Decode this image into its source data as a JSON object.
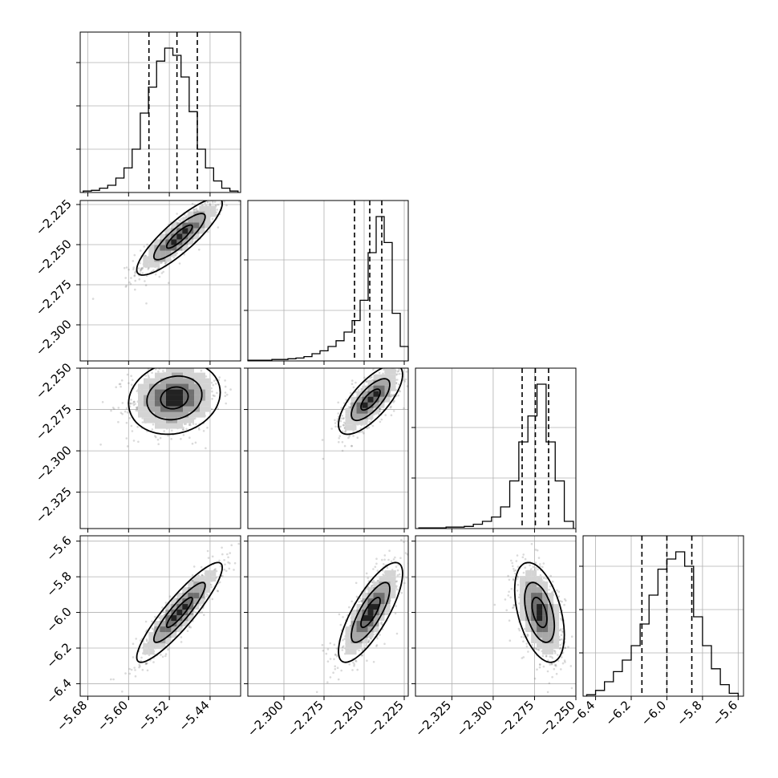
{
  "chart_data": {
    "type": "corner",
    "grid": true,
    "parameters": 4,
    "histograms": [
      {
        "param": 0,
        "bin_edges": [
          -5.689,
          -5.673,
          -5.657,
          -5.641,
          -5.625,
          -5.609,
          -5.593,
          -5.577,
          -5.561,
          -5.545,
          -5.529,
          -5.513,
          -5.497,
          -5.481,
          -5.465,
          -5.449,
          -5.433,
          -5.417,
          -5.401,
          -5.385
        ],
        "counts": [
          0.01,
          0.015,
          0.03,
          0.05,
          0.1,
          0.17,
          0.3,
          0.55,
          0.73,
          0.91,
          1.0,
          0.95,
          0.8,
          0.56,
          0.3,
          0.17,
          0.08,
          0.03,
          0.01
        ],
        "quantiles": [
          -5.56,
          -5.505,
          -5.465
        ],
        "xlim": [
          -5.695,
          -5.38
        ],
        "xticks": [
          -5.68,
          -5.6,
          -5.52,
          -5.44
        ],
        "xticklabels": [
          "−5.68",
          "−5.60",
          "−5.52",
          "−5.44"
        ],
        "ygrid": [
          0.3,
          0.6,
          0.9
        ]
      },
      {
        "param": 1,
        "bin_edges": [
          -2.3225,
          -2.3175,
          -2.3125,
          -2.3075,
          -2.3025,
          -2.2975,
          -2.2925,
          -2.2875,
          -2.2825,
          -2.2775,
          -2.2725,
          -2.2675,
          -2.2625,
          -2.2575,
          -2.2525,
          -2.2475,
          -2.2425,
          -2.2375,
          -2.2325,
          -2.2275,
          -2.2225
        ],
        "counts": [
          0.005,
          0.005,
          0.005,
          0.01,
          0.01,
          0.015,
          0.02,
          0.03,
          0.05,
          0.07,
          0.1,
          0.14,
          0.2,
          0.28,
          0.42,
          0.75,
          1.0,
          0.82,
          0.33,
          0.1
        ],
        "quantiles": [
          -2.256,
          -2.2465,
          -2.239
        ],
        "xlim": [
          -2.3225,
          -2.2225
        ],
        "xticks": [
          -2.3,
          -2.275,
          -2.25,
          -2.225
        ],
        "xticklabels": [
          "−2.300",
          "−2.275",
          "−2.250",
          "−2.225"
        ],
        "ygrid": [
          0.35,
          0.7
        ]
      },
      {
        "param": 2,
        "bin_edges": [
          -2.345,
          -2.3395,
          -2.334,
          -2.3285,
          -2.323,
          -2.3175,
          -2.312,
          -2.3065,
          -2.301,
          -2.2955,
          -2.29,
          -2.2845,
          -2.279,
          -2.2735,
          -2.268,
          -2.2625,
          -2.257,
          -2.2515
        ],
        "counts": [
          0.005,
          0.005,
          0.005,
          0.01,
          0.01,
          0.015,
          0.03,
          0.05,
          0.08,
          0.15,
          0.33,
          0.6,
          0.78,
          1.0,
          0.6,
          0.33,
          0.05
        ],
        "quantiles": [
          -2.2825,
          -2.2745,
          -2.2665
        ],
        "xlim": [
          -2.347,
          -2.25
        ],
        "xticks": [
          -2.325,
          -2.3,
          -2.275,
          -2.25
        ],
        "xticklabels": [
          "−2.325",
          "−2.300",
          "−2.275",
          "−2.250"
        ],
        "ygrid": [
          0.35,
          0.7
        ]
      },
      {
        "param": 3,
        "bin_edges": [
          -6.45,
          -6.4,
          -6.35,
          -6.3,
          -6.25,
          -6.2,
          -6.15,
          -6.1,
          -6.05,
          -6.0,
          -5.95,
          -5.9,
          -5.85,
          -5.8,
          -5.75,
          -5.7,
          -5.65,
          -5.6
        ],
        "counts": [
          0.01,
          0.04,
          0.1,
          0.17,
          0.25,
          0.35,
          0.5,
          0.7,
          0.88,
          0.95,
          1.0,
          0.9,
          0.55,
          0.35,
          0.19,
          0.08,
          0.02
        ],
        "quantiles": [
          -6.14,
          -6.0,
          -5.86
        ],
        "xlim": [
          -6.47,
          -5.57
        ],
        "xticks": [
          -6.4,
          -6.2,
          -6.0,
          -5.8,
          -5.6
        ],
        "xticklabels": [
          "−6.4",
          "−6.2",
          "−6.0",
          "−5.8",
          "−5.6"
        ],
        "ygrid": [
          0.3,
          0.6,
          0.9
        ]
      }
    ],
    "row_axes": [
      {
        "param": 1,
        "ylim": [
          -2.3225,
          -2.2225
        ],
        "yticks": [
          -2.225,
          -2.25,
          -2.275,
          -2.3
        ],
        "yticklabels": [
          "−2.225",
          "−2.250",
          "−2.275",
          "−2.300"
        ]
      },
      {
        "param": 2,
        "ylim": [
          -2.347,
          -2.25
        ],
        "yticks": [
          -2.25,
          -2.275,
          -2.3,
          -2.325
        ],
        "yticklabels": [
          "−2.250",
          "−2.275",
          "−2.300",
          "−2.325"
        ]
      },
      {
        "param": 3,
        "ylim": [
          -6.47,
          -5.57
        ],
        "yticks": [
          -5.6,
          -5.8,
          -6.0,
          -6.2,
          -6.4
        ],
        "yticklabels": [
          "−5.6",
          "−5.8",
          "−6.0",
          "−6.2",
          "−6.4"
        ]
      }
    ],
    "pairs": [
      {
        "x": 0,
        "y": 1,
        "mean": [
          -5.5,
          -2.245
        ],
        "sd": [
          0.042,
          0.012
        ],
        "rho": 0.86
      },
      {
        "x": 0,
        "y": 2,
        "mean": [
          -5.51,
          -2.268
        ],
        "sd": [
          0.045,
          0.011
        ],
        "rho": 0.15
      },
      {
        "x": 1,
        "y": 2,
        "mean": [
          -2.246,
          -2.269
        ],
        "sd": [
          0.01,
          0.0105
        ],
        "rho": 0.72
      },
      {
        "x": 0,
        "y": 3,
        "mean": [
          -5.5,
          -6.0
        ],
        "sd": [
          0.042,
          0.14
        ],
        "rho": 0.9
      },
      {
        "x": 1,
        "y": 3,
        "mean": [
          -2.246,
          -6.0
        ],
        "sd": [
          0.01,
          0.14
        ],
        "rho": 0.78
      },
      {
        "x": 2,
        "y": 3,
        "mean": [
          -2.272,
          -6.0
        ],
        "sd": [
          0.0075,
          0.14
        ],
        "rho": -0.45
      }
    ]
  }
}
